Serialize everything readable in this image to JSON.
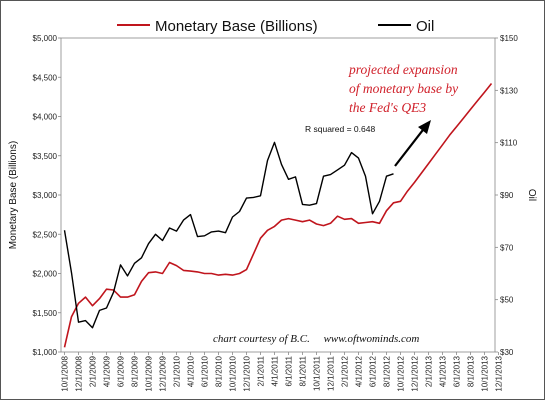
{
  "chart_data": {
    "type": "line",
    "legend": {
      "placement": "top",
      "entries": [
        "Monetary Base (Billions)",
        "Oil"
      ]
    },
    "colors": {
      "monetary_base": "#c0151d",
      "oil": "#000000",
      "annotation": "#d0202a"
    },
    "x_labels": [
      "10/1/2008",
      "12/1/2008",
      "2/1/2009",
      "4/1/2009",
      "6/1/2009",
      "8/1/2009",
      "10/1/2009",
      "12/1/2009",
      "2/1/2010",
      "4/1/2010",
      "6/1/2010",
      "8/1/2010",
      "10/1/2010",
      "12/1/2010",
      "2/1/2011",
      "4/1/2011",
      "6/1/2011",
      "8/1/2011",
      "10/1/2011",
      "12/1/2011",
      "2/1/2012",
      "4/1/2012",
      "6/1/2012",
      "8/1/2012",
      "10/1/2012",
      "12/1/2012",
      "2/1/2013",
      "4/1/2013",
      "6/1/2013",
      "8/1/2013",
      "10/1/2013",
      "12/1/2013"
    ],
    "left_axis": {
      "label": "Monetary Base (Billions)",
      "ylim": [
        1000,
        5000
      ],
      "ticks": [
        "$1,000",
        "$1,500",
        "$2,000",
        "$2,500",
        "$3,000",
        "$3,500",
        "$4,000",
        "$4,500",
        "$5,000"
      ]
    },
    "right_axis": {
      "label": "Oil",
      "ylim": [
        30,
        150
      ],
      "ticks": [
        "$30",
        "$50",
        "$70",
        "$90",
        "$110",
        "$130",
        "$150"
      ]
    },
    "series": [
      {
        "name": "Monetary Base (Billions)",
        "axis": "left",
        "start_index": 0,
        "values": [
          1060,
          1450,
          1620,
          1700,
          1590,
          1680,
          1800,
          1790,
          1700,
          1700,
          1730,
          1900,
          2010,
          2020,
          2000,
          2140,
          2100,
          2040,
          2030,
          2020,
          2000,
          2000,
          1980,
          1990,
          1980,
          2000,
          2050,
          2250,
          2450,
          2550,
          2600,
          2680,
          2700,
          2680,
          2660,
          2680,
          2630,
          2610,
          2640,
          2730,
          2690,
          2700,
          2640,
          2650,
          2660,
          2640,
          2800,
          2900,
          2920,
          3050,
          3160,
          3280,
          3400,
          3520,
          3640,
          3760,
          3870,
          3980,
          4090,
          4200,
          4310,
          4420
        ]
      },
      {
        "name": "Oil",
        "axis": "left",
        "start_index": 0,
        "values": [
          2550,
          2010,
          1380,
          1400,
          1310,
          1530,
          1560,
          1760,
          2110,
          1970,
          2130,
          2200,
          2380,
          2500,
          2420,
          2580,
          2540,
          2680,
          2750,
          2470,
          2480,
          2530,
          2540,
          2520,
          2720,
          2790,
          2960,
          2970,
          2990,
          3440,
          3670,
          3390,
          3200,
          3230,
          2880,
          2870,
          2890,
          3240,
          3260,
          3320,
          3380,
          3540,
          3470,
          3240,
          2760,
          2920,
          3240,
          3270
        ]
      }
    ],
    "annotations": {
      "r_squared": "R squared = 0.648",
      "projection": [
        "projected expansion",
        "of monetary base by",
        "the Fed's QE3"
      ],
      "credit": "chart courtesy of B.C.     www.oftwominds.com"
    }
  }
}
